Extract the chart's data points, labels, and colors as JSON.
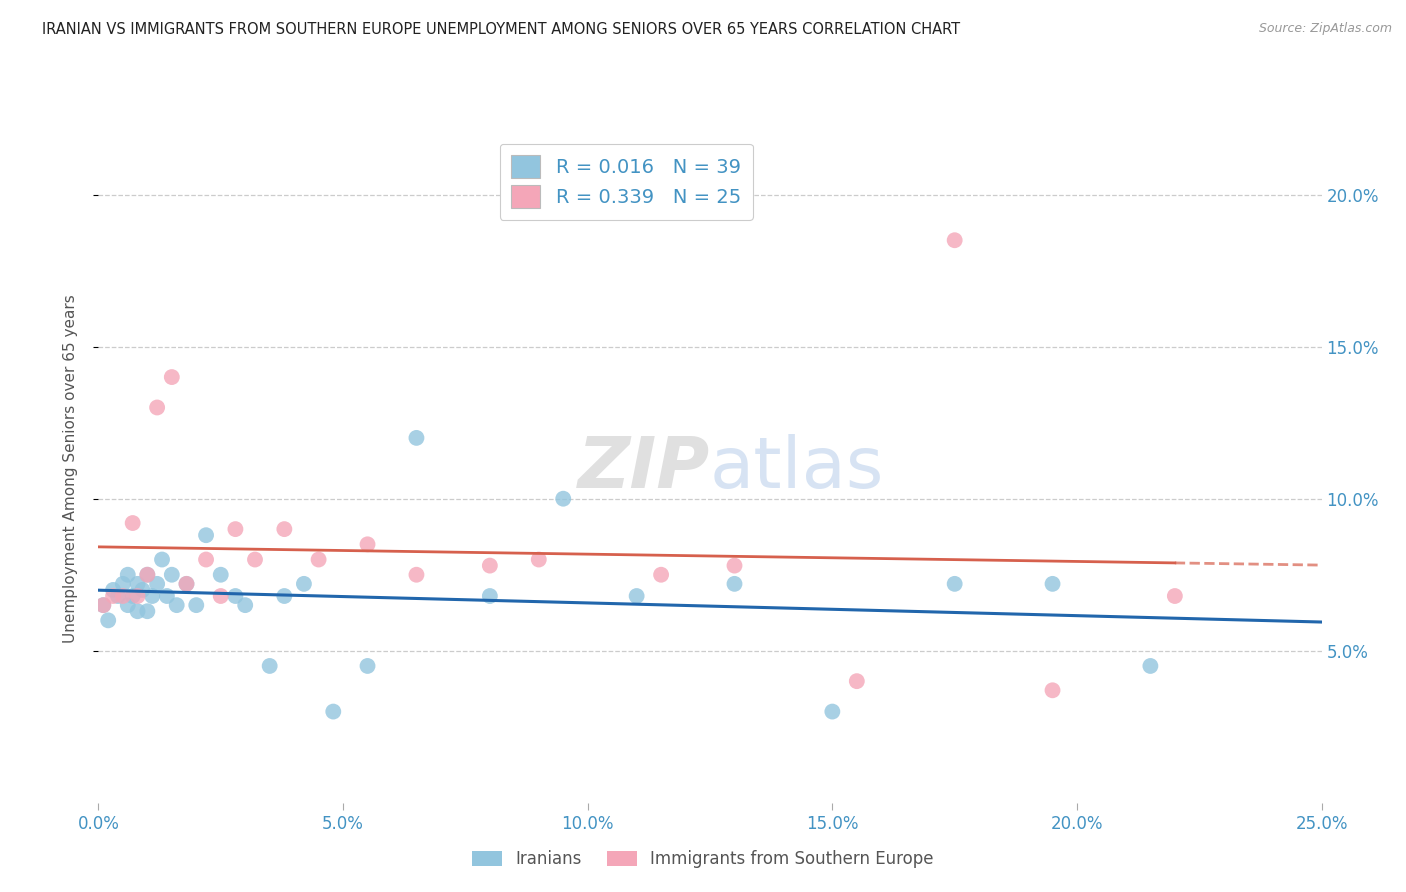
{
  "title": "IRANIAN VS IMMIGRANTS FROM SOUTHERN EUROPE UNEMPLOYMENT AMONG SENIORS OVER 65 YEARS CORRELATION CHART",
  "source": "Source: ZipAtlas.com",
  "ylabel": "Unemployment Among Seniors over 65 years",
  "xlabel_blue": "Iranians",
  "xlabel_pink": "Immigrants from Southern Europe",
  "xlim": [
    0.0,
    0.25
  ],
  "ylim": [
    0.0,
    0.22
  ],
  "xticks": [
    0.0,
    0.05,
    0.1,
    0.15,
    0.2,
    0.25
  ],
  "yticks": [
    0.05,
    0.1,
    0.15,
    0.2
  ],
  "xtick_labels": [
    "0.0%",
    "5.0%",
    "10.0%",
    "15.0%",
    "20.0%",
    "25.0%"
  ],
  "ytick_labels": [
    "5.0%",
    "10.0%",
    "15.0%",
    "20.0%"
  ],
  "blue_R": "0.016",
  "blue_N": "39",
  "pink_R": "0.339",
  "pink_N": "25",
  "blue_color": "#92c5de",
  "pink_color": "#f4a6b8",
  "blue_line_color": "#2166ac",
  "pink_line_color": "#d6604d",
  "tick_color": "#4393c3",
  "blue_x": [
    0.001,
    0.002,
    0.003,
    0.004,
    0.005,
    0.006,
    0.006,
    0.007,
    0.008,
    0.008,
    0.009,
    0.01,
    0.01,
    0.011,
    0.012,
    0.013,
    0.014,
    0.015,
    0.016,
    0.018,
    0.02,
    0.022,
    0.025,
    0.028,
    0.03,
    0.035,
    0.038,
    0.042,
    0.048,
    0.055,
    0.065,
    0.08,
    0.095,
    0.11,
    0.13,
    0.15,
    0.175,
    0.195,
    0.215
  ],
  "blue_y": [
    0.065,
    0.06,
    0.07,
    0.068,
    0.072,
    0.065,
    0.075,
    0.068,
    0.072,
    0.063,
    0.07,
    0.075,
    0.063,
    0.068,
    0.072,
    0.08,
    0.068,
    0.075,
    0.065,
    0.072,
    0.065,
    0.088,
    0.075,
    0.068,
    0.065,
    0.045,
    0.068,
    0.072,
    0.03,
    0.045,
    0.12,
    0.068,
    0.1,
    0.068,
    0.072,
    0.03,
    0.072,
    0.072,
    0.045
  ],
  "pink_x": [
    0.001,
    0.003,
    0.005,
    0.007,
    0.008,
    0.01,
    0.012,
    0.015,
    0.018,
    0.022,
    0.025,
    0.028,
    0.032,
    0.038,
    0.045,
    0.055,
    0.065,
    0.08,
    0.09,
    0.115,
    0.13,
    0.155,
    0.175,
    0.195,
    0.22
  ],
  "pink_y": [
    0.065,
    0.068,
    0.068,
    0.092,
    0.068,
    0.075,
    0.13,
    0.14,
    0.072,
    0.08,
    0.068,
    0.09,
    0.08,
    0.09,
    0.08,
    0.085,
    0.075,
    0.078,
    0.08,
    0.075,
    0.078,
    0.04,
    0.185,
    0.037,
    0.068
  ],
  "background_color": "#ffffff",
  "grid_color": "#cccccc",
  "watermark_color": "#e0e0e0"
}
